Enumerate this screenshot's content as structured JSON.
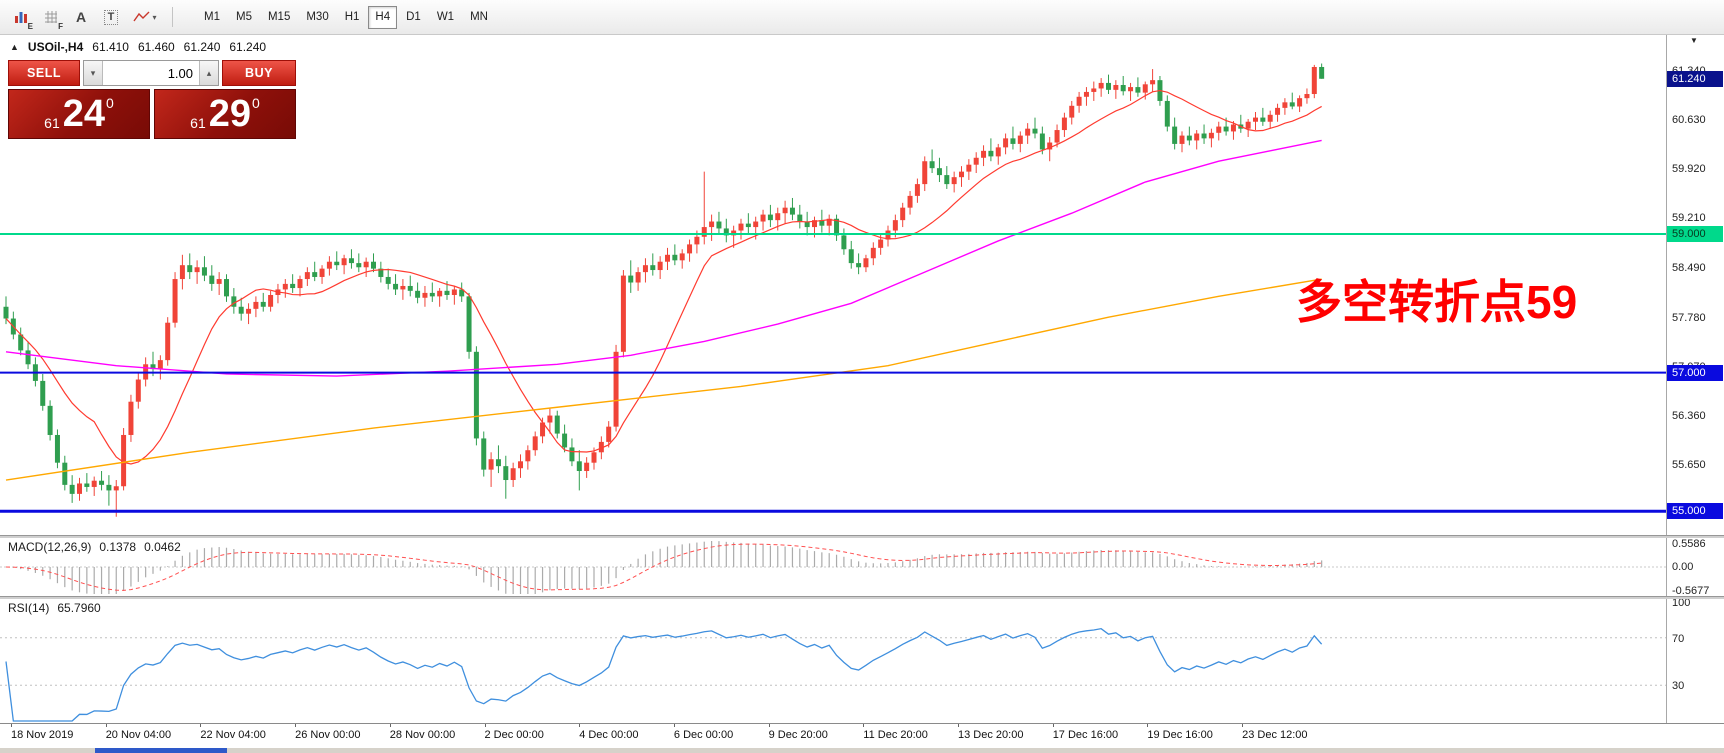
{
  "toolbar": {
    "icon_e_badge": "E",
    "icon_f_badge": "F",
    "a_tool_label": "A",
    "t_tool_label": "T",
    "dropdown_caret": "▾",
    "timeframes": [
      "M1",
      "M5",
      "M15",
      "M30",
      "H1",
      "H4",
      "D1",
      "W1",
      "MN"
    ],
    "active_timeframe": "H4"
  },
  "header": {
    "restore_icon": "▲",
    "symbol": "USOil-,H4",
    "open": "61.410",
    "high": "61.460",
    "low": "61.240",
    "close": "61.240"
  },
  "trade": {
    "sell_label": "SELL",
    "buy_label": "BUY",
    "volume": "1.00",
    "vol_down_icon": "▾",
    "vol_up_icon": "▴",
    "sell_price_int": "61",
    "sell_price_big": "24",
    "sell_price_sup": "0",
    "buy_price_int": "61",
    "buy_price_big": "29",
    "buy_price_sup": "0"
  },
  "annotation": {
    "text": "多空转折点59",
    "color": "#ff0000"
  },
  "price_axis": {
    "labels": [
      "61.340",
      "60.630",
      "59.920",
      "59.210",
      "58.490",
      "57.780",
      "57.070",
      "56.360",
      "55.650"
    ],
    "tags": [
      {
        "text": "61.240",
        "price": 61.24,
        "bg": "#0a128c",
        "fg": "#ffffff"
      },
      {
        "text": "59.000",
        "price": 59.0,
        "bg": "#00d98b",
        "fg": "#06381f"
      },
      {
        "text": "57.000",
        "price": 57.0,
        "bg": "#0a0adf",
        "fg": "#ffffff"
      },
      {
        "text": "55.000",
        "price": 55.0,
        "bg": "#0a0adf",
        "fg": "#ffffff"
      }
    ]
  },
  "macd": {
    "label": "MACD(12,26,9)",
    "value_main": "0.1378",
    "value_signal": "0.0462",
    "axis": [
      "0.5586",
      "0.00",
      "-0.5677"
    ]
  },
  "rsi": {
    "label": "RSI(14)",
    "value": "65.7960",
    "axis": [
      "100",
      "70",
      "30"
    ]
  },
  "time_axis": {
    "labels": [
      "18 Nov 2019",
      "20 Nov 04:00",
      "22 Nov 04:00",
      "26 Nov 00:00",
      "28 Nov 00:00",
      "2 Dec 00:00",
      "4 Dec 00:00",
      "6 Dec 00:00",
      "9 Dec 20:00",
      "11 Dec 20:00",
      "13 Dec 20:00",
      "17 Dec 16:00",
      "19 Dec 16:00",
      "23 Dec 12:00"
    ]
  },
  "misc": {
    "scale_arrow": "▼"
  },
  "chart_data": {
    "type": "candlestick",
    "symbol": "USOil-,H4",
    "timeframe": "H4",
    "colors": {
      "bull": "#f04438",
      "bear": "#2f9e4f"
    },
    "hlines": [
      {
        "price": 59.0,
        "color": "#00d98b",
        "width": 2
      },
      {
        "price": 57.0,
        "color": "#0a0adf",
        "width": 2
      },
      {
        "price": 55.0,
        "color": "#0a0adf",
        "width": 3
      }
    ],
    "overlays": {
      "ma_fast": {
        "type": "sma",
        "period": 13,
        "color": "#ff3b30"
      },
      "ma_mid": {
        "color": "#ff00ff",
        "points": [
          [
            0,
            57.3
          ],
          [
            15,
            57.1
          ],
          [
            30,
            56.98
          ],
          [
            45,
            56.95
          ],
          [
            60,
            57.02
          ],
          [
            75,
            57.12
          ],
          [
            85,
            57.25
          ],
          [
            95,
            57.45
          ],
          [
            105,
            57.7
          ],
          [
            115,
            58.0
          ],
          [
            125,
            58.45
          ],
          [
            135,
            58.9
          ],
          [
            145,
            59.3
          ],
          [
            155,
            59.75
          ],
          [
            165,
            60.05
          ],
          [
            172,
            60.2
          ],
          [
            179,
            60.35
          ]
        ]
      },
      "ma_slow": {
        "color": "#ffa800",
        "points": [
          [
            0,
            55.45
          ],
          [
            25,
            55.85
          ],
          [
            50,
            56.2
          ],
          [
            75,
            56.5
          ],
          [
            100,
            56.8
          ],
          [
            120,
            57.1
          ],
          [
            135,
            57.45
          ],
          [
            150,
            57.8
          ],
          [
            165,
            58.1
          ],
          [
            179,
            58.35
          ]
        ]
      }
    },
    "macd_params": {
      "fast": 12,
      "slow": 26,
      "signal": 9
    },
    "rsi_period": 14,
    "rsi_levels": [
      70,
      30
    ],
    "ohlc": [
      [
        57.95,
        58.1,
        57.7,
        57.78
      ],
      [
        57.78,
        57.88,
        57.48,
        57.55
      ],
      [
        57.55,
        57.65,
        57.25,
        57.32
      ],
      [
        57.32,
        57.45,
        57.05,
        57.12
      ],
      [
        57.12,
        57.22,
        56.8,
        56.88
      ],
      [
        56.88,
        56.98,
        56.45,
        56.52
      ],
      [
        56.52,
        56.6,
        56.02,
        56.1
      ],
      [
        56.1,
        56.18,
        55.62,
        55.7
      ],
      [
        55.7,
        55.8,
        55.3,
        55.38
      ],
      [
        55.38,
        55.52,
        55.12,
        55.25
      ],
      [
        55.25,
        55.48,
        55.15,
        55.4
      ],
      [
        55.4,
        55.55,
        55.28,
        55.35
      ],
      [
        55.35,
        55.5,
        55.22,
        55.44
      ],
      [
        55.44,
        55.58,
        55.3,
        55.38
      ],
      [
        55.38,
        55.52,
        55.08,
        55.3
      ],
      [
        55.3,
        55.45,
        54.92,
        55.36
      ],
      [
        55.36,
        56.2,
        55.3,
        56.1
      ],
      [
        56.1,
        56.68,
        56.0,
        56.58
      ],
      [
        56.58,
        57.0,
        56.48,
        56.9
      ],
      [
        56.9,
        57.22,
        56.8,
        57.12
      ],
      [
        57.12,
        57.3,
        56.95,
        57.05
      ],
      [
        57.05,
        57.25,
        56.9,
        57.18
      ],
      [
        57.18,
        57.8,
        57.1,
        57.72
      ],
      [
        57.72,
        58.45,
        57.65,
        58.35
      ],
      [
        58.35,
        58.7,
        58.2,
        58.55
      ],
      [
        58.55,
        58.72,
        58.35,
        58.45
      ],
      [
        58.45,
        58.62,
        58.28,
        58.52
      ],
      [
        58.52,
        58.68,
        58.32,
        58.4
      ],
      [
        58.4,
        58.55,
        58.18,
        58.28
      ],
      [
        58.28,
        58.45,
        58.12,
        58.35
      ],
      [
        58.35,
        58.42,
        58.02,
        58.1
      ],
      [
        58.1,
        58.22,
        57.85,
        57.95
      ],
      [
        57.95,
        58.08,
        57.75,
        57.85
      ],
      [
        57.85,
        58.0,
        57.7,
        57.92
      ],
      [
        57.92,
        58.1,
        57.8,
        58.02
      ],
      [
        58.02,
        58.15,
        57.88,
        57.95
      ],
      [
        57.95,
        58.18,
        57.88,
        58.12
      ],
      [
        58.12,
        58.28,
        58.0,
        58.2
      ],
      [
        58.2,
        58.35,
        58.08,
        58.28
      ],
      [
        58.28,
        58.42,
        58.15,
        58.22
      ],
      [
        58.22,
        58.4,
        58.1,
        58.35
      ],
      [
        58.35,
        58.52,
        58.25,
        58.45
      ],
      [
        58.45,
        58.6,
        58.32,
        58.38
      ],
      [
        58.38,
        58.55,
        58.28,
        58.5
      ],
      [
        58.5,
        58.68,
        58.4,
        58.6
      ],
      [
        58.6,
        58.75,
        58.48,
        58.55
      ],
      [
        58.55,
        58.7,
        58.42,
        58.65
      ],
      [
        58.65,
        58.78,
        58.5,
        58.58
      ],
      [
        58.58,
        58.72,
        58.45,
        58.52
      ],
      [
        58.52,
        58.66,
        58.38,
        58.6
      ],
      [
        58.6,
        58.72,
        58.45,
        58.5
      ],
      [
        58.5,
        58.6,
        58.3,
        58.38
      ],
      [
        58.38,
        58.5,
        58.2,
        58.28
      ],
      [
        58.28,
        58.42,
        58.12,
        58.2
      ],
      [
        58.2,
        58.35,
        58.05,
        58.25
      ],
      [
        58.25,
        58.4,
        58.1,
        58.18
      ],
      [
        58.18,
        58.3,
        58.0,
        58.08
      ],
      [
        58.08,
        58.25,
        57.95,
        58.15
      ],
      [
        58.15,
        58.3,
        58.02,
        58.1
      ],
      [
        58.1,
        58.22,
        57.95,
        58.18
      ],
      [
        58.18,
        58.32,
        58.05,
        58.12
      ],
      [
        58.12,
        58.25,
        57.98,
        58.2
      ],
      [
        58.2,
        58.3,
        58.02,
        58.1
      ],
      [
        58.1,
        58.15,
        57.2,
        57.3
      ],
      [
        57.3,
        57.38,
        55.95,
        56.05
      ],
      [
        56.05,
        56.15,
        55.5,
        55.6
      ],
      [
        55.6,
        55.85,
        55.35,
        55.75
      ],
      [
        55.75,
        55.95,
        55.55,
        55.65
      ],
      [
        55.65,
        55.8,
        55.18,
        55.45
      ],
      [
        55.45,
        55.7,
        55.35,
        55.62
      ],
      [
        55.62,
        55.82,
        55.48,
        55.72
      ],
      [
        55.72,
        55.95,
        55.6,
        55.88
      ],
      [
        55.88,
        56.15,
        55.8,
        56.08
      ],
      [
        56.08,
        56.35,
        55.98,
        56.28
      ],
      [
        56.28,
        56.48,
        56.12,
        56.38
      ],
      [
        56.38,
        56.45,
        56.05,
        56.12
      ],
      [
        56.12,
        56.25,
        55.85,
        55.92
      ],
      [
        55.92,
        56.05,
        55.65,
        55.72
      ],
      [
        55.72,
        55.88,
        55.3,
        55.58
      ],
      [
        55.58,
        55.78,
        55.48,
        55.7
      ],
      [
        55.7,
        55.92,
        55.6,
        55.85
      ],
      [
        55.85,
        56.08,
        55.75,
        56.0
      ],
      [
        56.0,
        56.3,
        55.92,
        56.22
      ],
      [
        56.22,
        57.4,
        56.15,
        57.3
      ],
      [
        57.3,
        58.48,
        57.22,
        58.4
      ],
      [
        58.4,
        58.62,
        58.15,
        58.3
      ],
      [
        58.3,
        58.52,
        58.18,
        58.45
      ],
      [
        58.45,
        58.65,
        58.3,
        58.55
      ],
      [
        58.55,
        58.72,
        58.4,
        58.48
      ],
      [
        58.48,
        58.68,
        58.35,
        58.6
      ],
      [
        58.6,
        58.8,
        58.48,
        58.7
      ],
      [
        58.7,
        58.85,
        58.55,
        58.62
      ],
      [
        58.62,
        58.78,
        58.5,
        58.72
      ],
      [
        58.72,
        58.92,
        58.6,
        58.85
      ],
      [
        58.85,
        59.05,
        58.72,
        58.96
      ],
      [
        58.96,
        59.9,
        58.85,
        59.1
      ],
      [
        59.1,
        59.28,
        58.9,
        59.18
      ],
      [
        59.18,
        59.32,
        59.0,
        59.08
      ],
      [
        59.08,
        59.22,
        58.88,
        58.98
      ],
      [
        58.98,
        59.12,
        58.8,
        59.05
      ],
      [
        59.05,
        59.22,
        58.92,
        59.15
      ],
      [
        59.15,
        59.3,
        59.0,
        59.1
      ],
      [
        59.1,
        59.25,
        58.92,
        59.18
      ],
      [
        59.18,
        59.35,
        59.05,
        59.28
      ],
      [
        59.28,
        59.42,
        59.1,
        59.2
      ],
      [
        59.2,
        59.38,
        59.05,
        59.3
      ],
      [
        59.3,
        59.48,
        59.15,
        59.38
      ],
      [
        59.38,
        59.52,
        59.2,
        59.28
      ],
      [
        59.28,
        59.42,
        59.08,
        59.18
      ],
      [
        59.18,
        59.32,
        58.98,
        59.1
      ],
      [
        59.1,
        59.25,
        58.95,
        59.2
      ],
      [
        59.2,
        59.35,
        59.02,
        59.12
      ],
      [
        59.12,
        59.28,
        58.98,
        59.22
      ],
      [
        59.22,
        59.28,
        58.9,
        58.98
      ],
      [
        58.98,
        59.08,
        58.7,
        58.78
      ],
      [
        58.78,
        58.9,
        58.5,
        58.58
      ],
      [
        58.58,
        58.72,
        58.42,
        58.52
      ],
      [
        58.52,
        58.7,
        58.45,
        58.65
      ],
      [
        58.65,
        58.88,
        58.55,
        58.8
      ],
      [
        58.8,
        59.0,
        58.7,
        58.92
      ],
      [
        58.92,
        59.12,
        58.82,
        59.05
      ],
      [
        59.05,
        59.28,
        58.95,
        59.2
      ],
      [
        59.2,
        59.45,
        59.1,
        59.38
      ],
      [
        59.38,
        59.62,
        59.28,
        59.55
      ],
      [
        59.55,
        59.8,
        59.45,
        59.72
      ],
      [
        59.72,
        60.12,
        59.62,
        60.05
      ],
      [
        60.05,
        60.22,
        59.88,
        59.95
      ],
      [
        59.95,
        60.1,
        59.75,
        59.85
      ],
      [
        59.85,
        59.98,
        59.65,
        59.72
      ],
      [
        59.72,
        59.9,
        59.6,
        59.82
      ],
      [
        59.82,
        59.98,
        59.68,
        59.9
      ],
      [
        59.9,
        60.08,
        59.78,
        60.0
      ],
      [
        60.0,
        60.18,
        59.88,
        60.1
      ],
      [
        60.1,
        60.28,
        59.98,
        60.2
      ],
      [
        60.2,
        60.38,
        60.05,
        60.12
      ],
      [
        60.12,
        60.3,
        60.0,
        60.25
      ],
      [
        60.25,
        60.45,
        60.15,
        60.38
      ],
      [
        60.38,
        60.55,
        60.22,
        60.3
      ],
      [
        60.3,
        60.48,
        60.18,
        60.42
      ],
      [
        60.42,
        60.6,
        60.3,
        60.52
      ],
      [
        60.52,
        60.68,
        60.38,
        60.45
      ],
      [
        60.45,
        60.55,
        60.15,
        60.22
      ],
      [
        60.22,
        60.4,
        60.05,
        60.32
      ],
      [
        60.32,
        60.58,
        60.25,
        60.5
      ],
      [
        60.5,
        60.75,
        60.4,
        60.68
      ],
      [
        60.68,
        60.92,
        60.58,
        60.85
      ],
      [
        60.85,
        61.05,
        60.75,
        60.98
      ],
      [
        60.98,
        61.12,
        60.85,
        61.05
      ],
      [
        61.05,
        61.2,
        60.92,
        61.1
      ],
      [
        61.1,
        61.25,
        60.98,
        61.18
      ],
      [
        61.18,
        61.3,
        61.02,
        61.08
      ],
      [
        61.08,
        61.22,
        60.95,
        61.15
      ],
      [
        61.15,
        61.28,
        61.0,
        61.06
      ],
      [
        61.06,
        61.18,
        60.92,
        61.12
      ],
      [
        61.12,
        61.26,
        60.98,
        61.04
      ],
      [
        61.04,
        61.2,
        60.94,
        61.16
      ],
      [
        61.16,
        61.38,
        61.05,
        61.22
      ],
      [
        61.22,
        61.28,
        60.85,
        60.92
      ],
      [
        60.92,
        61.0,
        60.48,
        60.55
      ],
      [
        60.55,
        60.68,
        60.22,
        60.3
      ],
      [
        60.3,
        60.48,
        60.18,
        60.42
      ],
      [
        60.42,
        60.55,
        60.28,
        60.35
      ],
      [
        60.35,
        60.5,
        60.22,
        60.45
      ],
      [
        60.45,
        60.58,
        60.3,
        60.38
      ],
      [
        60.38,
        60.52,
        60.25,
        60.46
      ],
      [
        60.46,
        60.62,
        60.35,
        60.55
      ],
      [
        60.55,
        60.68,
        60.42,
        60.48
      ],
      [
        60.48,
        60.63,
        60.36,
        60.58
      ],
      [
        60.58,
        60.72,
        60.46,
        60.52
      ],
      [
        60.52,
        60.66,
        60.4,
        60.62
      ],
      [
        60.62,
        60.76,
        60.5,
        60.68
      ],
      [
        60.68,
        60.82,
        60.56,
        60.62
      ],
      [
        60.62,
        60.78,
        60.52,
        60.72
      ],
      [
        60.72,
        60.88,
        60.62,
        60.82
      ],
      [
        60.82,
        60.96,
        60.72,
        60.9
      ],
      [
        60.9,
        61.04,
        60.8,
        60.84
      ],
      [
        60.84,
        61.0,
        60.76,
        60.96
      ],
      [
        60.96,
        61.1,
        60.88,
        61.02
      ],
      [
        61.02,
        61.44,
        60.96,
        61.41
      ],
      [
        61.41,
        61.46,
        61.24,
        61.24
      ]
    ]
  }
}
